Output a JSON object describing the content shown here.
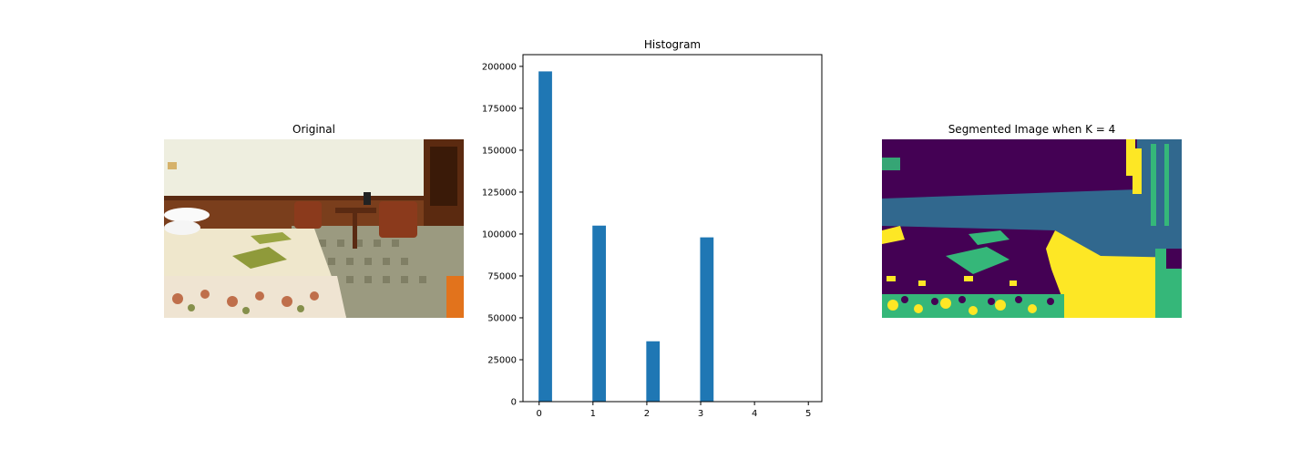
{
  "panels": {
    "original_title": "Original",
    "segmented_title": "Segmented Image when K = 4"
  },
  "chart_data": {
    "type": "bar",
    "title": "Histogram",
    "xlabel": "",
    "ylabel": "",
    "x": [
      0,
      1,
      2,
      3
    ],
    "values": [
      197000,
      105000,
      36000,
      98000
    ],
    "bar_width": 0.25,
    "xlim": [
      -0.3,
      5.25
    ],
    "ylim": [
      0,
      207000
    ],
    "x_ticks": [
      0,
      1,
      2,
      3,
      4,
      5
    ],
    "y_ticks": [
      0,
      25000,
      50000,
      75000,
      100000,
      125000,
      150000,
      175000,
      200000
    ],
    "bar_color": "#1f77b4",
    "grid": false
  },
  "colors": {
    "viridis_dark": "#440154",
    "viridis_blue": "#31688e",
    "viridis_green": "#35b779",
    "viridis_yellow": "#fde725"
  }
}
